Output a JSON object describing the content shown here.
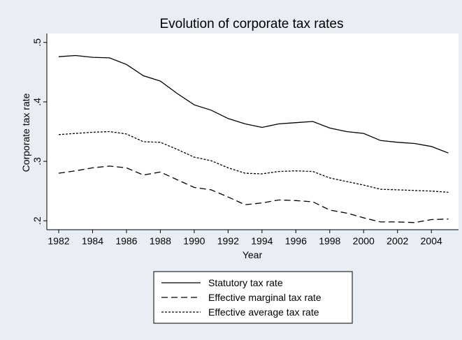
{
  "chart_data": {
    "type": "line",
    "title": "Evolution of corporate tax rates",
    "xlabel": "Year",
    "ylabel": "Corporate tax rate",
    "xlim": [
      1981.3,
      2005.6
    ],
    "ylim": [
      0.185,
      0.515
    ],
    "x_ticks": [
      1982,
      1984,
      1986,
      1988,
      1990,
      1992,
      1994,
      1996,
      1998,
      2000,
      2002,
      2004
    ],
    "x_tick_labels": [
      "1982",
      "1984",
      "1986",
      "1988",
      "1990",
      "1992",
      "1994",
      "1996",
      "1998",
      "2000",
      "2002",
      "2004"
    ],
    "y_ticks": [
      0.2,
      0.3,
      0.4,
      0.5
    ],
    "y_tick_labels": [
      ".2",
      ".3",
      ".4",
      ".5"
    ],
    "grid": false,
    "legend_position": "bottom",
    "x": [
      1982,
      1983,
      1984,
      1985,
      1986,
      1987,
      1988,
      1989,
      1990,
      1991,
      1992,
      1993,
      1994,
      1995,
      1996,
      1997,
      1998,
      1999,
      2000,
      2001,
      2002,
      2003,
      2004,
      2005
    ],
    "series": [
      {
        "name": "Statutory tax rate",
        "dash": "solid",
        "values": [
          0.476,
          0.478,
          0.475,
          0.474,
          0.463,
          0.444,
          0.435,
          0.414,
          0.395,
          0.386,
          0.372,
          0.363,
          0.357,
          0.363,
          0.365,
          0.367,
          0.356,
          0.35,
          0.347,
          0.335,
          0.332,
          0.33,
          0.325,
          0.314
        ]
      },
      {
        "name": "Effective marginal tax rate",
        "dash": "long-dash",
        "values": [
          0.28,
          0.284,
          0.289,
          0.292,
          0.289,
          0.277,
          0.282,
          0.269,
          0.256,
          0.252,
          0.24,
          0.227,
          0.23,
          0.235,
          0.234,
          0.232,
          0.218,
          0.213,
          0.205,
          0.198,
          0.198,
          0.197,
          0.202,
          0.203
        ]
      },
      {
        "name": "Effective average tax rate",
        "dash": "short-dash",
        "values": [
          0.345,
          0.347,
          0.349,
          0.35,
          0.346,
          0.333,
          0.332,
          0.32,
          0.307,
          0.301,
          0.289,
          0.28,
          0.279,
          0.283,
          0.284,
          0.283,
          0.272,
          0.266,
          0.26,
          0.253,
          0.252,
          0.251,
          0.25,
          0.248
        ]
      }
    ],
    "colors": {
      "outer_background": "#e8eef3",
      "plot_background": "#ffffff",
      "line": "#000000"
    }
  }
}
